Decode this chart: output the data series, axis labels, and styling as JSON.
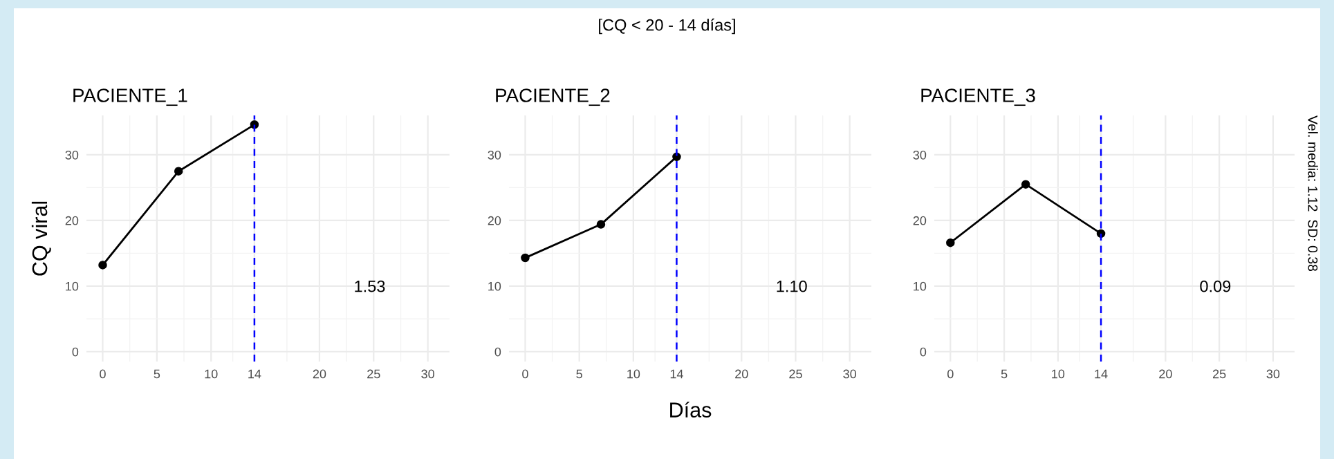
{
  "chart_data": [
    {
      "type": "line",
      "title": "PACIENTE_1",
      "ylabel": "CQ viral",
      "x": [
        0,
        7,
        14
      ],
      "series": [
        {
          "color": "#000000",
          "values": [
            13.2,
            27.5,
            34.6
          ]
        }
      ],
      "xlim": [
        -1.5,
        32
      ],
      "ylim": [
        -1.5,
        36
      ],
      "xticks": [
        0,
        5,
        10,
        14,
        20,
        25,
        30
      ],
      "yticks": [
        0,
        10,
        20,
        30
      ],
      "grid": true,
      "marker": "circle",
      "line_style": "solid",
      "ref_lines": [
        {
          "axis": "x",
          "value": 14,
          "color": "#0000ff",
          "line_style": "dashed"
        }
      ],
      "annotations": [
        "1.53"
      ]
    },
    {
      "type": "line",
      "title": "PACIENTE_2",
      "xlabel": "Días",
      "x": [
        0,
        7,
        14
      ],
      "series": [
        {
          "color": "#000000",
          "values": [
            14.3,
            19.4,
            29.7
          ]
        }
      ],
      "xlim": [
        -1.5,
        32
      ],
      "ylim": [
        -1.5,
        36
      ],
      "xticks": [
        0,
        5,
        10,
        14,
        20,
        25,
        30
      ],
      "yticks": [
        0,
        10,
        20,
        30
      ],
      "grid": true,
      "marker": "circle",
      "line_style": "solid",
      "ref_lines": [
        {
          "axis": "x",
          "value": 14,
          "color": "#0000ff",
          "line_style": "dashed"
        }
      ],
      "subtitle": "[CQ < 20 - 14 días]",
      "annotations": [
        "1.10"
      ]
    },
    {
      "type": "line",
      "title": "PACIENTE_3",
      "x": [
        0,
        7,
        14
      ],
      "series": [
        {
          "color": "#000000",
          "values": [
            16.6,
            25.5,
            18.0
          ]
        }
      ],
      "xlim": [
        -1.5,
        32
      ],
      "ylim": [
        -1.5,
        36
      ],
      "xticks": [
        0,
        5,
        10,
        14,
        20,
        25,
        30
      ],
      "yticks": [
        0,
        10,
        20,
        30
      ],
      "grid": true,
      "marker": "circle",
      "line_style": "solid",
      "ref_lines": [
        {
          "axis": "x",
          "value": 14,
          "color": "#0000ff",
          "line_style": "dashed"
        }
      ],
      "annotations": [
        "0.09",
        "Vel. media: 1.12  SD: 0.38"
      ]
    }
  ]
}
